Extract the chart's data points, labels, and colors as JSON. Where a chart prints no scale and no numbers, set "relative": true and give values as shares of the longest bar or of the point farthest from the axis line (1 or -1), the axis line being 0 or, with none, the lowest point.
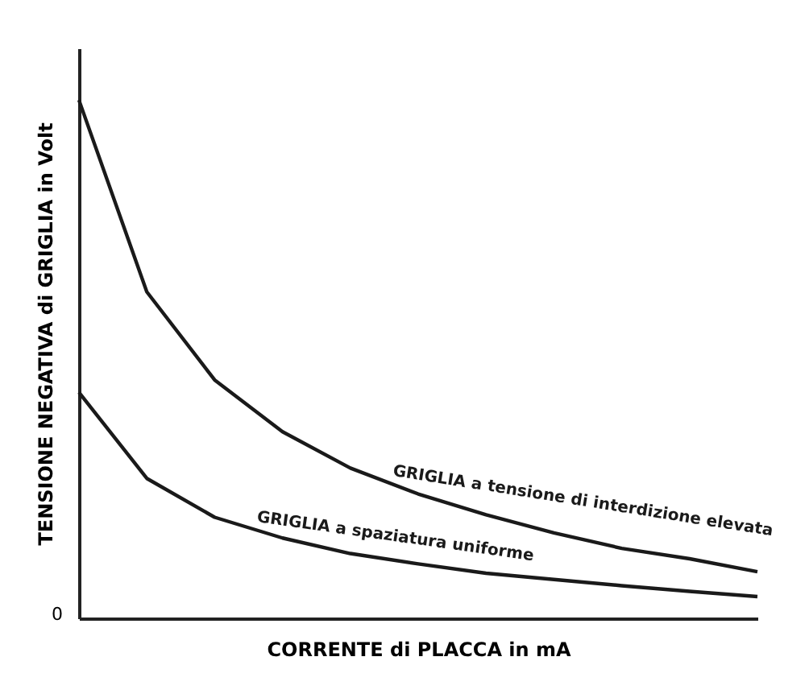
{
  "chart_data": {
    "type": "line",
    "relative": true,
    "xlabel": "CORRENTE di PLACCA in mA",
    "ylabel": "TENSIONE NEGATIVA di GRIGLIA in Volt",
    "legend": false,
    "marker": "none",
    "line_style": "solid",
    "categories": [
      null,
      null,
      null,
      null,
      null,
      null,
      null,
      null,
      null,
      null,
      null
    ],
    "series": [
      {
        "name": "GRIGLIA a tensione di interdizione elevata",
        "color": "#1a1a1a",
        "values": [
          1.0,
          0.63,
          0.46,
          0.36,
          0.29,
          0.24,
          0.2,
          0.165,
          0.135,
          0.115,
          0.09
        ]
      },
      {
        "name": "GRIGLIA a spaziatura uniforme",
        "color": "#1a1a1a",
        "values": [
          0.436,
          0.27,
          0.195,
          0.155,
          0.125,
          0.105,
          0.087,
          0.075,
          0.063,
          0.052,
          0.042
        ]
      }
    ],
    "annotations": [
      "0"
    ]
  }
}
